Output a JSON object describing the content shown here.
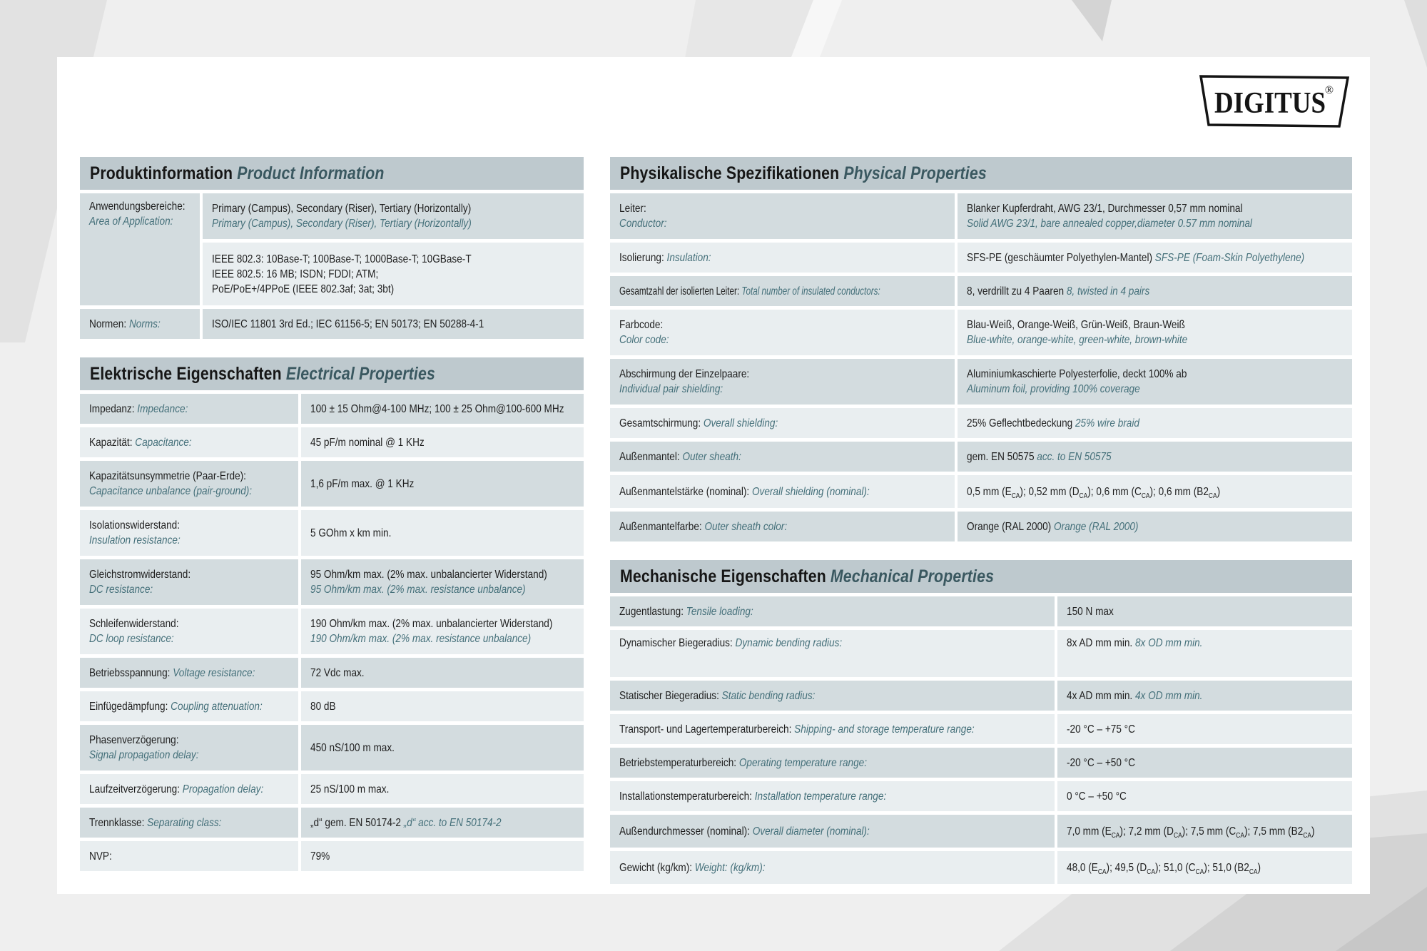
{
  "logo": {
    "brand": "DIGITUS",
    "registered": "®"
  },
  "product": {
    "title_de": "Produktinformation",
    "title_en": "Product Information",
    "rows": [
      {
        "label_de": "Anwendungsbereiche:",
        "label_en": "Area of Application:",
        "value_de": "Primary (Campus), Secondary (Riser), Tertiary (Horizontally)",
        "value_en": "Primary (Campus), Secondary (Riser), Tertiary (Horizontally)"
      },
      {
        "value_lines": [
          "IEEE 802.3: 10Base-T; 100Base-T; 1000Base-T; 10GBase-T",
          "IEEE 802.5: 16 MB; ISDN; FDDI; ATM;",
          "PoE/PoE+/4PPoE (IEEE 802.3af; 3at; 3bt)"
        ]
      },
      {
        "label_de": "Normen:",
        "label_en": "Norms:",
        "value_de": "ISO/IEC 11801 3rd Ed.; IEC 61156-5; EN 50173; EN 50288-4-1"
      }
    ]
  },
  "electrical": {
    "title_de": "Elektrische Eigenschaften",
    "title_en": "Electrical Properties",
    "rows": [
      {
        "label_de": "Impedanz:",
        "label_en": "Impedance:",
        "value_de": "100 ± 15 Ohm@4-100 MHz; 100 ± 25 Ohm@100-600 MHz"
      },
      {
        "label_de": "Kapazität:",
        "label_en": "Capacitance:",
        "value_de": "45 pF/m nominal @ 1 KHz"
      },
      {
        "label_de": "Kapazitätsunsymmetrie (Paar-Erde):",
        "label_en": "Capacitance unbalance (pair-ground):",
        "value_de": "1,6 pF/m max. @ 1 KHz"
      },
      {
        "label_de": "Isolationswiderstand:",
        "label_en": "Insulation resistance:",
        "value_de": "5 GOhm x km min."
      },
      {
        "label_de": "Gleichstromwiderstand:",
        "label_en": "DC resistance:",
        "value_de": "95 Ohm/km max. (2% max. unbalancierter Widerstand)",
        "value_en": "95 Ohm/km max. (2% max. resistance unbalance)"
      },
      {
        "label_de": "Schleifenwiderstand:",
        "label_en": "DC loop resistance:",
        "value_de": "190 Ohm/km max. (2% max. unbalancierter Widerstand)",
        "value_en": "190 Ohm/km max. (2% max. resistance unbalance)"
      },
      {
        "label_de": "Betriebsspannung:",
        "label_en": "Voltage resistance:",
        "value_de": "72 Vdc max."
      },
      {
        "label_de": "Einfügedämpfung:",
        "label_en": "Coupling attenuation:",
        "value_de": "80 dB"
      },
      {
        "label_de": "Phasenverzögerung:",
        "label_en": "Signal propagation delay:",
        "value_de": "450 nS/100 m max."
      },
      {
        "label_de": "Laufzeitverzögerung:",
        "label_en": "Propagation delay:",
        "value_de": "25 nS/100 m max."
      },
      {
        "label_de": "Trennklasse:",
        "label_en": "Separating class:",
        "value_de": "„d“ gem. EN 50174-2",
        "value_en": "„d“ acc. to EN 50174-2"
      },
      {
        "label_de": "NVP:",
        "value_de": "79%"
      }
    ]
  },
  "physical": {
    "title_de": "Physikalische Spezifikationen",
    "title_en": "Physical Properties",
    "rows": [
      {
        "label_de": "Leiter:",
        "label_en": "Conductor:",
        "value_de": "Blanker Kupferdraht, AWG 23/1, Durchmesser 0,57 mm nominal",
        "value_en": "Solid AWG 23/1, bare annealed copper,diameter 0.57 mm nominal"
      },
      {
        "label_de": "Isolierung:",
        "label_en": "Insulation:",
        "value_de": "SFS-PE (geschäumter Polyethylen-Mantel)",
        "value_en": "SFS-PE (Foam-Skin Polyethylene)"
      },
      {
        "label_de": "Gesamtzahl der isolierten Leiter:",
        "label_en": "Total number of insulated conductors:",
        "value_de": "8, verdrillt zu 4 Paaren",
        "value_en": "8, twisted in 4 pairs"
      },
      {
        "label_de": "Farbcode:",
        "label_en": "Color code:",
        "value_de": "Blau-Weiß, Orange-Weiß, Grün-Weiß, Braun-Weiß",
        "value_en": "Blue-white, orange-white, green-white, brown-white"
      },
      {
        "label_de": "Abschirmung der Einzelpaare:",
        "label_en": "Individual pair shielding:",
        "value_de": "Aluminiumkaschierte Polyesterfolie, deckt 100% ab",
        "value_en": "Aluminum foil, providing 100% coverage"
      },
      {
        "label_de": "Gesamtschirmung:",
        "label_en": "Overall shielding:",
        "value_de": "25% Geflechtbedeckung",
        "value_en": "25% wire braid"
      },
      {
        "label_de": "Außenmantel:",
        "label_en": "Outer sheath:",
        "value_de": "gem. EN 50575",
        "value_en": "acc. to EN 50575"
      },
      {
        "label_de": "Außenmantelstärke (nominal):",
        "label_en": "Overall shielding (nominal):",
        "value_de": "0,5 mm (E~CA~); 0,52 mm (D~CA~); 0,6 mm (C~CA~); 0,6 mm (B2~CA~)"
      },
      {
        "label_de": "Außenmantelfarbe:",
        "label_en": "Outer sheath color:",
        "value_de": "Orange (RAL 2000)",
        "value_en": "Orange (RAL 2000)"
      }
    ]
  },
  "mechanical": {
    "title_de": "Mechanische Eigenschaften",
    "title_en": "Mechanical Properties",
    "rows": [
      {
        "label_de": "Zugentlastung:",
        "label_en": "Tensile loading:",
        "value_de": "150 N max"
      },
      {
        "label_de": "Dynamischer Biegeradius:",
        "label_en": "Dynamic bending radius:",
        "value_de": "8x AD mm min.",
        "value_en": "8x OD mm min."
      },
      {
        "label_de": "Statischer Biegeradius:",
        "label_en": "Static bending radius:",
        "value_de": "4x AD mm min.",
        "value_en": "4x OD mm min."
      },
      {
        "label_de": "Transport- und Lagertemperaturbereich:",
        "label_en": "Shipping- and storage temperature range:",
        "value_de": "-20 °C – +75 °C"
      },
      {
        "label_de": "Betriebstemperaturbereich:",
        "label_en": "Operating temperature range:",
        "value_de": "-20 °C – +50 °C"
      },
      {
        "label_de": "Installationstemperaturbereich:",
        "label_en": "Installation temperature range:",
        "value_de": "0 °C – +50 °C"
      },
      {
        "label_de": "Außendurchmesser (nominal):",
        "label_en": "Overall diameter (nominal):",
        "value_de": "7,0 mm (E~CA~); 7,2 mm (D~CA~); 7,5 mm (C~CA~); 7,5 mm (B2~CA~)"
      },
      {
        "label_de": "Gewicht (kg/km):",
        "label_en": "Weight: (kg/km):",
        "value_de": "48,0 (E~CA~); 49,5 (D~CA~); 51,0 (C~CA~); 51,0 (B2~CA~)"
      }
    ]
  }
}
